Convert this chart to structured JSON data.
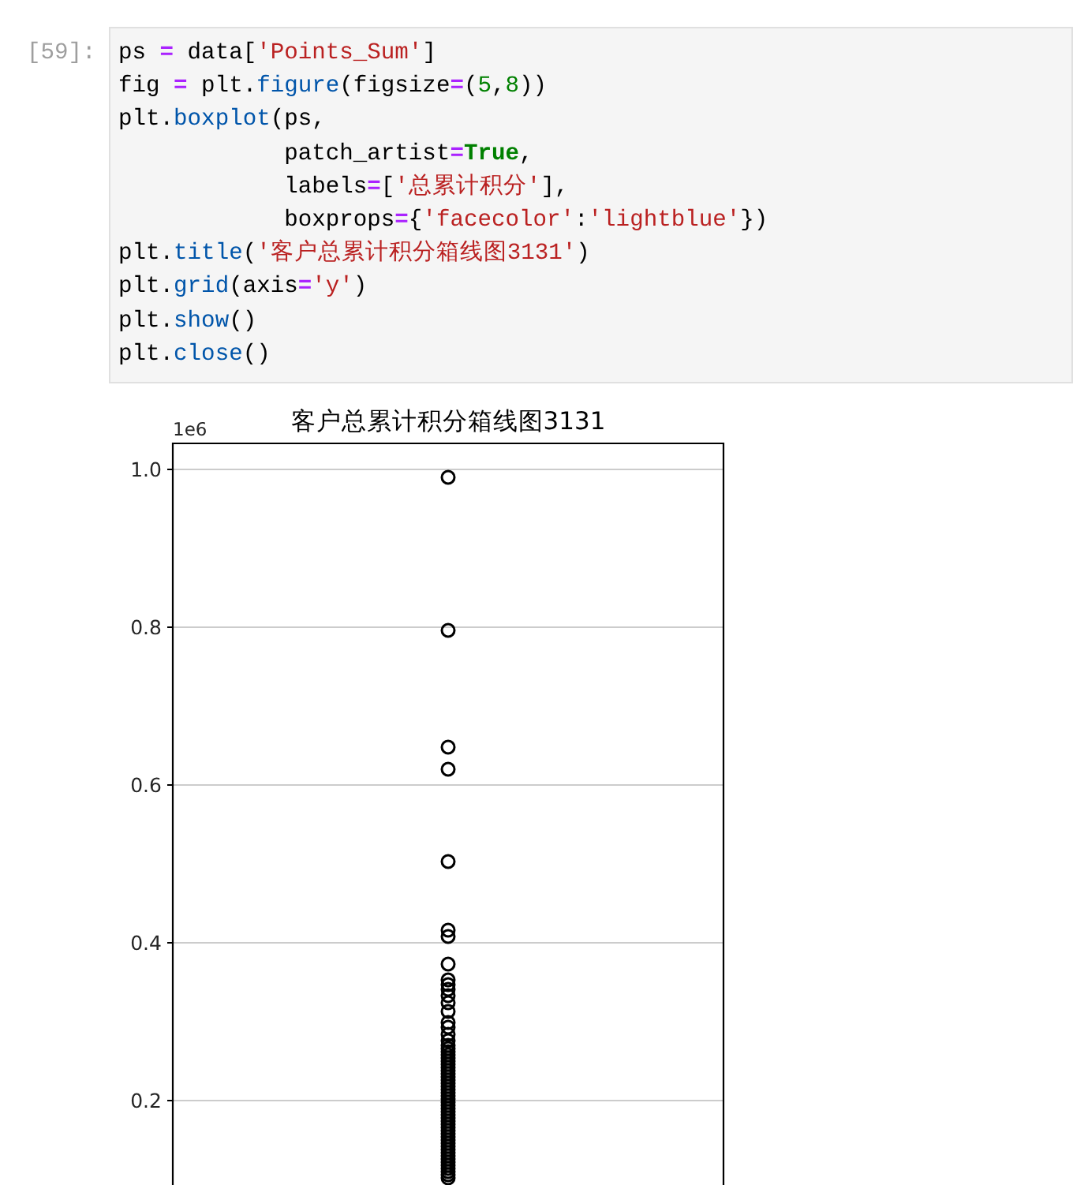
{
  "chart_data": [
    {
      "type": "other",
      "title": "[59]:",
      "annotations": [
        "ps = data['Points_Sum']",
        "fig = plt.figure(figsize=(5,8))",
        "plt.boxplot(ps,",
        "            patch_artist=True,",
        "            labels=['总累计积分'],",
        "            boxprops={'facecolor':'lightblue'})",
        "plt.title('客户总累计积分箱线图3131')",
        "plt.grid(axis='y')",
        "plt.show()",
        "plt.close()"
      ]
    },
    {
      "type": "scatter",
      "title": "客户总累计积分箱线图3131",
      "annotations": [
        "1e6"
      ],
      "categories": [
        null
      ],
      "marker": "circle",
      "series": [
        {
          "color": "#000000",
          "x": [
            null,
            null,
            null,
            null,
            null,
            null,
            null,
            null,
            null,
            null,
            null,
            null,
            null,
            null,
            null,
            null,
            null,
            null,
            null,
            null,
            null,
            null,
            null,
            null,
            null,
            null,
            null,
            null,
            null,
            null,
            null,
            null,
            null,
            null,
            null,
            null,
            null,
            null,
            null,
            null,
            null,
            null,
            null,
            null,
            null,
            null,
            null,
            null,
            null,
            null,
            null,
            null,
            null,
            null,
            null,
            null,
            null,
            null,
            null,
            null,
            null
          ],
          "values": [
            0.99,
            0.796,
            0.648,
            0.62,
            0.503,
            0.416,
            0.408,
            0.373,
            0.353,
            0.347,
            0.341,
            0.333,
            0.324,
            0.313,
            0.299,
            0.293,
            0.284,
            0.276,
            0.27,
            0.266,
            0.262,
            0.258,
            0.254,
            0.25,
            0.246,
            0.242,
            0.238,
            0.234,
            0.23,
            0.226,
            0.222,
            0.218,
            0.214,
            0.21,
            0.206,
            0.202,
            0.198,
            0.194,
            0.19,
            0.186,
            0.182,
            0.178,
            0.174,
            0.17,
            0.166,
            0.162,
            0.158,
            0.154,
            0.15,
            0.146,
            0.142,
            0.138,
            0.134,
            0.13,
            0.126,
            0.122,
            0.118,
            0.114,
            0.11,
            0.106,
            0.102
          ]
        }
      ],
      "ylim": [
        0.093,
        1.033
      ],
      "yticks": [
        0.2,
        0.4,
        0.6,
        0.8,
        {
          "value": 1,
          "label": "1.0"
        }
      ],
      "grid": "y",
      "tick_labels": "y"
    }
  ]
}
